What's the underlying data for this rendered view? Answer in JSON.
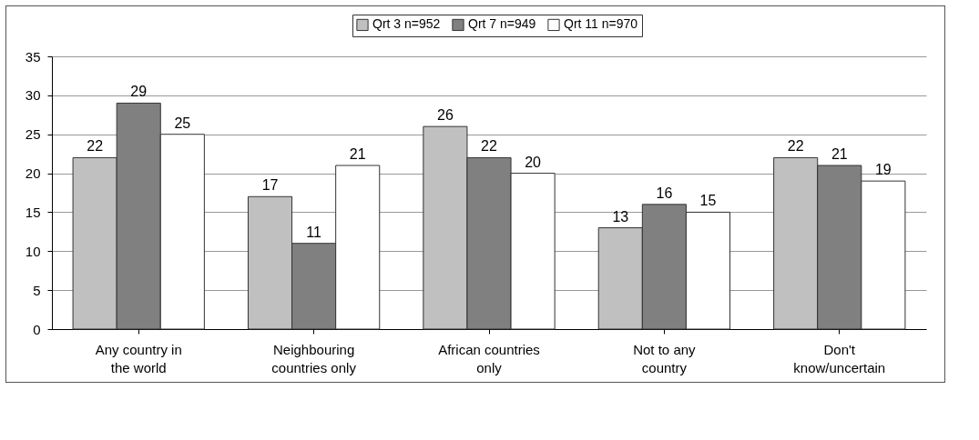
{
  "chart_data": {
    "type": "bar",
    "categories": [
      "Any country in the world",
      "Neighbouring countries only",
      "African countries only",
      "Not to any country",
      "Don't know/uncertain"
    ],
    "series": [
      {
        "name": "Qrt 3 n=952",
        "color": "#c0c0c0",
        "values": [
          22,
          17,
          26,
          13,
          22
        ]
      },
      {
        "name": "Qrt 7 n=949",
        "color": "#808080",
        "values": [
          29,
          11,
          22,
          16,
          21
        ]
      },
      {
        "name": "Qrt 11 n=970",
        "color": "#ffffff",
        "values": [
          25,
          21,
          20,
          15,
          19
        ]
      }
    ],
    "ylim": [
      0,
      35
    ],
    "yticks": [
      0,
      5,
      10,
      15,
      20,
      25,
      30,
      35
    ],
    "grid": "y",
    "legend": "top",
    "data_labels": true
  }
}
